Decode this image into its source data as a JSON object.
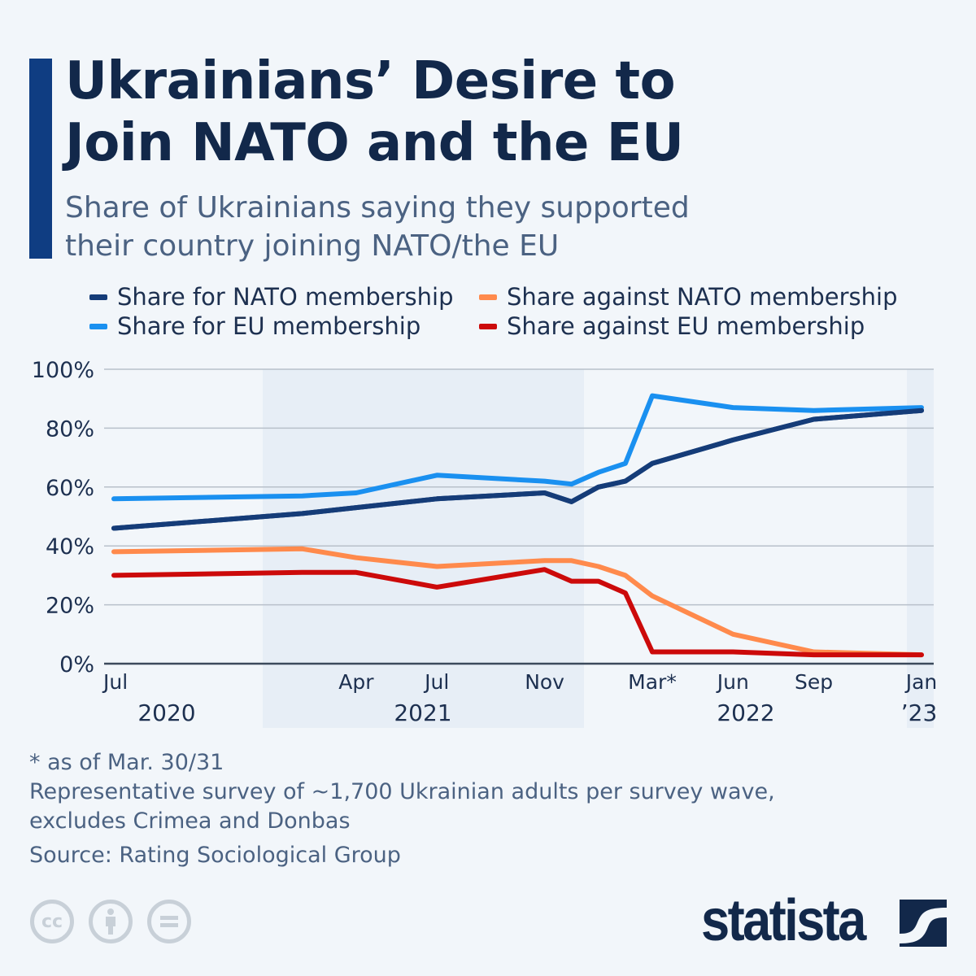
{
  "header": {
    "title_line1": "Ukrainians’ Desire to",
    "title_line2": "Join NATO and the EU",
    "subtitle": "Share of Ukrainians saying they supported their country joining NATO/the EU"
  },
  "colors": {
    "accent": "#0f3d82",
    "background": "#f2f6fa",
    "title": "#12284a"
  },
  "chart_data": {
    "type": "line",
    "title": "Ukrainians’ Desire to Join NATO and the EU",
    "subtitle": "Share of Ukrainians saying they supported their country joining NATO/the EU",
    "x": [
      "2020-07",
      "2021-02",
      "2021-04",
      "2021-07",
      "2021-11",
      "2021-12",
      "2022-01",
      "2022-02",
      "2022-03",
      "2022-06",
      "2022-09",
      "2023-01"
    ],
    "series": [
      {
        "name": "Share for NATO membership",
        "color": "#153c78",
        "values": [
          46,
          51,
          53,
          56,
          58,
          55,
          60,
          62,
          68,
          76,
          83,
          86
        ]
      },
      {
        "name": "Share for EU membership",
        "color": "#1a90f0",
        "values": [
          56,
          57,
          58,
          64,
          62,
          61,
          65,
          68,
          91,
          87,
          86,
          87
        ]
      },
      {
        "name": "Share against NATO membership",
        "color": "#ff8a4c",
        "values": [
          38,
          39,
          36,
          33,
          35,
          35,
          33,
          30,
          23,
          10,
          4,
          3
        ]
      },
      {
        "name": "Share against EU membership",
        "color": "#cc0a0a",
        "values": [
          30,
          31,
          31,
          26,
          32,
          28,
          28,
          24,
          4,
          4,
          3,
          3
        ]
      }
    ],
    "ylim": [
      0,
      100
    ],
    "y_ticks": [
      "0%",
      "20%",
      "40%",
      "60%",
      "80%",
      "100%"
    ],
    "x_tick_labels": [
      {
        "date": "2020-07",
        "label": "Jul"
      },
      {
        "date": "2021-04",
        "label": "Apr"
      },
      {
        "date": "2021-07",
        "label": "Jul"
      },
      {
        "date": "2021-11",
        "label": "Nov"
      },
      {
        "date": "2022-03",
        "label": "Mar*"
      },
      {
        "date": "2022-06",
        "label": "Jun"
      },
      {
        "date": "2022-09",
        "label": "Sep"
      },
      {
        "date": "2023-01",
        "label": "Jan"
      }
    ],
    "year_labels": [
      "2020",
      "2021",
      "2022",
      "’23"
    ],
    "grid": true,
    "legend_position": "top"
  },
  "notes": {
    "footnote": "* as of Mar. 30/31",
    "survey_line1": "Representative survey of ~1,700 Ukrainian adults per survey wave,",
    "survey_line2": "excludes Crimea and Donbas",
    "source": "Source: Rating Sociological Group"
  },
  "footer": {
    "license_icons": [
      "creative-commons-icon",
      "attribution-icon",
      "no-derivatives-icon"
    ],
    "cc_text": "cc",
    "logo": "statista"
  }
}
